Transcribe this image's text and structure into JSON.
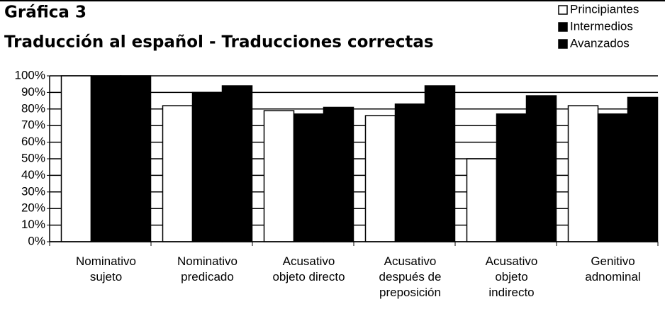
{
  "chart_data": {
    "type": "bar",
    "title": "Gráfica 3",
    "subtitle": "Traducción al español - Traducciones correctas",
    "categories": [
      "Nominativo\nsujeto",
      "Nominativo\npredicado",
      "Acusativo\nobjeto directo",
      "Acusativo\ndespués de\npreposición",
      "Acusativo\nobjeto\nindirecto",
      "Genitivo\nadnominal"
    ],
    "series": [
      {
        "name": "Principiantes",
        "color": "#ffffff",
        "values": [
          100,
          82,
          79,
          76,
          50,
          82
        ]
      },
      {
        "name": "Intermedios",
        "color": "#000000",
        "values": [
          100,
          90,
          77,
          83,
          77,
          77
        ]
      },
      {
        "name": "Avanzados",
        "color": "#000000",
        "values": [
          100,
          94,
          81,
          94,
          88,
          87
        ]
      }
    ],
    "ylim": [
      0,
      100
    ],
    "yticks": [
      {
        "value": 0,
        "label": "0%"
      },
      {
        "value": 10,
        "label": "10%"
      },
      {
        "value": 20,
        "label": "20%"
      },
      {
        "value": 30,
        "label": "30%"
      },
      {
        "value": 40,
        "label": "40%"
      },
      {
        "value": 50,
        "label": "50%"
      },
      {
        "value": 60,
        "label": "60%"
      },
      {
        "value": 70,
        "label": "70%"
      },
      {
        "value": 80,
        "label": "80%"
      },
      {
        "value": 90,
        "label": "90%"
      },
      {
        "value": 100,
        "label": "100%"
      }
    ],
    "grid": true,
    "legend": "top-right"
  }
}
